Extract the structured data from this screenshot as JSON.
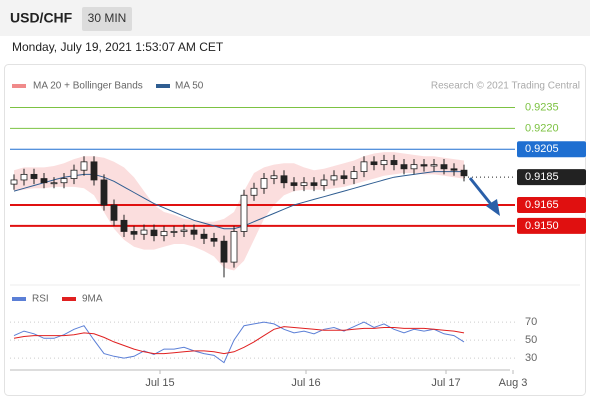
{
  "header": {
    "symbol": "USD/CHF",
    "timeframe": "30 MIN",
    "timestamp": "Monday, July 19, 2021 1:53:07 AM CET"
  },
  "chart_data": [
    {
      "type": "candlestick",
      "credit": "Research © 2021 Trading Central",
      "up_color": "#ffffff",
      "down_color": "#222222",
      "xlim": [
        -0.2,
        52.6
      ],
      "xticks": [
        {
          "value": 14.6,
          "label": "Jul 15"
        },
        {
          "value": 29.2,
          "label": "Jul 16"
        },
        {
          "value": 43.2,
          "label": "Jul 17"
        },
        {
          "value": 49.9,
          "label": "Aug 3"
        }
      ],
      "ylim": [
        0.9109,
        0.9244
      ],
      "levels": [
        {
          "value": 0.9235,
          "label": "0.9235",
          "color": "#7cc242",
          "boxed": false
        },
        {
          "value": 0.922,
          "label": "0.9220",
          "color": "#7cc242",
          "boxed": false
        },
        {
          "value": 0.9205,
          "label": "0.9205",
          "color": "#1f6fd1",
          "boxed": true
        },
        {
          "value": 0.9185,
          "label": "0.9185",
          "color": "#222222",
          "boxed": true,
          "dashed": true
        },
        {
          "value": 0.9165,
          "label": "0.9165",
          "color": "#e01010",
          "boxed": true
        },
        {
          "value": 0.915,
          "label": "0.9150",
          "color": "#e01010",
          "boxed": true
        }
      ],
      "open": [
        0.918,
        0.9183,
        0.9187,
        0.9184,
        0.9181,
        0.9181,
        0.9184,
        0.919,
        0.9196,
        0.9183,
        0.9165,
        0.9154,
        0.9146,
        0.9144,
        0.9147,
        0.9143,
        0.9146,
        0.9146,
        0.9147,
        0.9144,
        0.9141,
        0.9139,
        0.9124,
        0.9146,
        0.9172,
        0.9177,
        0.9184,
        0.9186,
        0.9181,
        0.9179,
        0.9181,
        0.9179,
        0.9183,
        0.9186,
        0.9184,
        0.9189,
        0.9196,
        0.9194,
        0.9197,
        0.9194,
        0.9191,
        0.9194,
        0.9193,
        0.9194,
        0.9191,
        0.919
      ],
      "high": [
        0.9187,
        0.9191,
        0.9191,
        0.9188,
        0.9185,
        0.9188,
        0.9194,
        0.92,
        0.92,
        0.9187,
        0.9169,
        0.9158,
        0.915,
        0.9151,
        0.9151,
        0.915,
        0.915,
        0.9151,
        0.9151,
        0.9148,
        0.9145,
        0.9143,
        0.915,
        0.9176,
        0.9181,
        0.9188,
        0.919,
        0.919,
        0.9185,
        0.9185,
        0.9185,
        0.9187,
        0.919,
        0.919,
        0.9193,
        0.92,
        0.92,
        0.9201,
        0.9201,
        0.9198,
        0.9198,
        0.9198,
        0.9198,
        0.9198,
        0.9195,
        0.9194
      ],
      "low": [
        0.9176,
        0.9179,
        0.918,
        0.9177,
        0.9177,
        0.9177,
        0.918,
        0.9186,
        0.9179,
        0.9161,
        0.915,
        0.9142,
        0.914,
        0.914,
        0.9139,
        0.9139,
        0.9142,
        0.9142,
        0.914,
        0.9137,
        0.9135,
        0.9113,
        0.912,
        0.9142,
        0.9168,
        0.9173,
        0.918,
        0.9177,
        0.9175,
        0.9175,
        0.9175,
        0.9175,
        0.9179,
        0.918,
        0.918,
        0.9185,
        0.919,
        0.919,
        0.919,
        0.9187,
        0.9187,
        0.9189,
        0.9189,
        0.9187,
        0.9186,
        0.9182
      ],
      "close": [
        0.9183,
        0.9187,
        0.9184,
        0.9181,
        0.9181,
        0.9184,
        0.919,
        0.9196,
        0.9183,
        0.9165,
        0.9154,
        0.9146,
        0.9144,
        0.9147,
        0.9143,
        0.9146,
        0.9146,
        0.9147,
        0.9144,
        0.9141,
        0.9139,
        0.9124,
        0.9146,
        0.9172,
        0.9177,
        0.9184,
        0.9186,
        0.9181,
        0.9179,
        0.9181,
        0.9179,
        0.9183,
        0.9186,
        0.9184,
        0.9189,
        0.9196,
        0.9194,
        0.9197,
        0.9194,
        0.9191,
        0.9194,
        0.9193,
        0.9194,
        0.9191,
        0.919,
        0.9186
      ],
      "bands": {
        "name": "MA 20 + Bollinger Bands",
        "color": "#f08a8a",
        "fill": "#fbdede",
        "upper": [
          0.919,
          0.9192,
          0.9192,
          0.9192,
          0.9193,
          0.9195,
          0.9198,
          0.92,
          0.92,
          0.9199,
          0.9196,
          0.9192,
          0.9185,
          0.9175,
          0.9165,
          0.916,
          0.9158,
          0.9155,
          0.9154,
          0.9153,
          0.9153,
          0.9155,
          0.916,
          0.9175,
          0.9188,
          0.9192,
          0.9194,
          0.9195,
          0.9195,
          0.9192,
          0.919,
          0.9191,
          0.9193,
          0.9195,
          0.9197,
          0.92,
          0.9202,
          0.9203,
          0.9203,
          0.9202,
          0.9201,
          0.92,
          0.92,
          0.9199,
          0.9198,
          0.9197
        ],
        "lower": [
          0.9175,
          0.9176,
          0.9177,
          0.9177,
          0.9178,
          0.9178,
          0.9178,
          0.9177,
          0.9172,
          0.916,
          0.9148,
          0.914,
          0.9135,
          0.9133,
          0.9133,
          0.9135,
          0.9137,
          0.9137,
          0.9135,
          0.9132,
          0.9128,
          0.912,
          0.9118,
          0.9125,
          0.914,
          0.9155,
          0.9165,
          0.9172,
          0.9175,
          0.9176,
          0.9176,
          0.9176,
          0.9177,
          0.9178,
          0.918,
          0.9182,
          0.9184,
          0.9186,
          0.9187,
          0.9188,
          0.9188,
          0.9187,
          0.9187,
          0.9186,
          0.9185,
          0.9184
        ]
      },
      "series": [
        {
          "name": "MA 50",
          "color": "#2f5d91",
          "values": [
            0.9175,
            0.9177,
            0.9179,
            0.9181,
            0.9183,
            0.9185,
            0.9186,
            0.9187,
            0.9187,
            0.9185,
            0.9182,
            0.9178,
            0.9174,
            0.917,
            0.9166,
            0.9163,
            0.916,
            0.9157,
            0.9154,
            0.9152,
            0.915,
            0.9148,
            0.9148,
            0.915,
            0.9153,
            0.9156,
            0.9159,
            0.9162,
            0.9165,
            0.9167,
            0.9169,
            0.9171,
            0.9173,
            0.9175,
            0.9177,
            0.9179,
            0.9181,
            0.9183,
            0.9185,
            0.9186,
            0.9187,
            0.9188,
            0.9189,
            0.9189,
            0.9189,
            0.9189
          ]
        }
      ]
    },
    {
      "type": "line",
      "xlim": [
        -0.2,
        52.6
      ],
      "ylim": [
        19,
        89
      ],
      "yticks": [
        30,
        50,
        70
      ],
      "series": [
        {
          "name": "RSI",
          "color": "#5b7fd6",
          "values": [
            55,
            60,
            57,
            52,
            52,
            56,
            62,
            66,
            50,
            35,
            32,
            30,
            32,
            38,
            34,
            40,
            40,
            42,
            38,
            35,
            33,
            25,
            50,
            66,
            68,
            70,
            68,
            62,
            58,
            60,
            57,
            62,
            64,
            60,
            65,
            70,
            64,
            68,
            62,
            58,
            62,
            60,
            62,
            57,
            55,
            48
          ]
        },
        {
          "name": "9MA",
          "color": "#e02020",
          "values": [
            52,
            54,
            55,
            55,
            55,
            55,
            56,
            58,
            57,
            53,
            48,
            44,
            40,
            37,
            35,
            35,
            36,
            37,
            38,
            38,
            37,
            35,
            37,
            42,
            48,
            55,
            62,
            65,
            64,
            63,
            62,
            61,
            61,
            61,
            62,
            63,
            63,
            64,
            64,
            63,
            63,
            63,
            62,
            61,
            60,
            58
          ]
        }
      ]
    }
  ]
}
